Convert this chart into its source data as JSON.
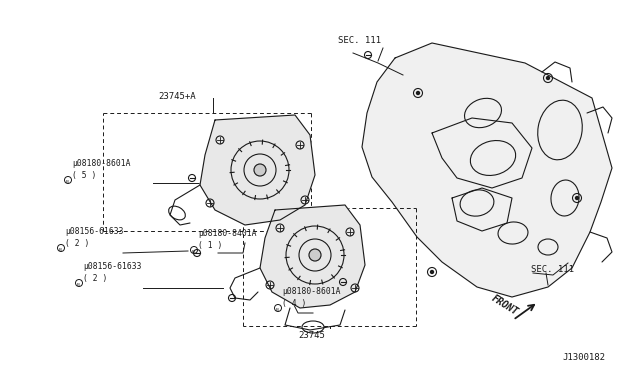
{
  "bg_color": "#ffffff",
  "fig_id": "J1300182",
  "labels": {
    "sec111_top": "SEC. 111",
    "sec111_bot": "SEC. 111",
    "part_23745A": "23745+A",
    "part_23745": "23745",
    "part_08180_8601A_5": "µ08180-8601A\n( 5 )",
    "part_08180_8401A": "µ08180-8401A\n( 1 )",
    "part_08156_61633_2a": "µ08156-61633\n( 2 )",
    "part_08156_61633_2b": "µ08156-61633\n( 2 )",
    "part_08180_8601A_4": "µ08180-8601A\n( 4 )",
    "front": "FRONT"
  }
}
